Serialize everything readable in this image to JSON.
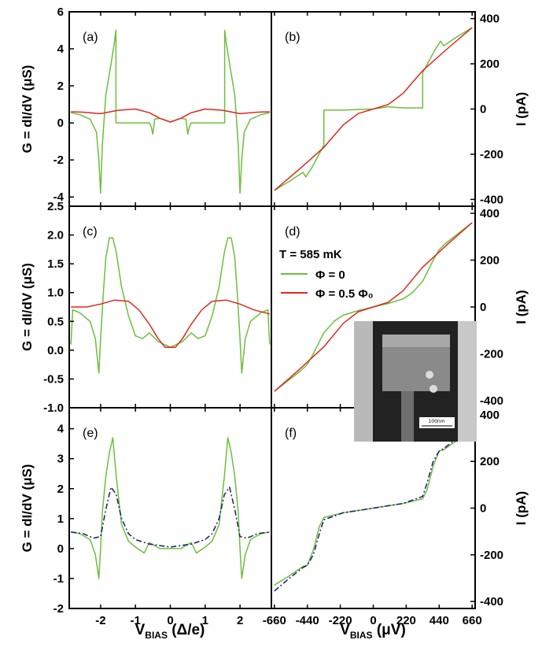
{
  "chart_data": [
    {
      "id": "a",
      "panel_label": "(a)",
      "type": "line",
      "ylabel": "G = dI/dV (μS)",
      "xlim": [
        -2.9,
        2.9
      ],
      "ylim": [
        -4.5,
        6
      ],
      "yticks": [
        "6",
        "4",
        "2",
        "0",
        "-2",
        "-4"
      ],
      "ytick_values": [
        6,
        4,
        2,
        0,
        -2,
        -4
      ],
      "series": [
        {
          "color": "#6cbf3c",
          "style": "solid",
          "x": [
            -2.85,
            -2.6,
            -2.3,
            -2.12,
            -2.05,
            -2.0,
            -1.95,
            -1.85,
            -1.7,
            -1.6,
            -1.56,
            -1.56,
            -0.6,
            -0.55,
            -0.5,
            -0.45,
            -0.3,
            0,
            0.3,
            0.45,
            0.5,
            0.55,
            0.6,
            1.56,
            1.56,
            1.6,
            1.7,
            1.85,
            1.95,
            2.0,
            2.05,
            2.12,
            2.3,
            2.6,
            2.85
          ],
          "y": [
            0.55,
            0.45,
            0.2,
            -0.5,
            -2,
            -3.8,
            -1.2,
            1.5,
            3.2,
            4.4,
            5.0,
            0,
            0,
            -0.2,
            -0.6,
            0.2,
            0.25,
            0.05,
            0.25,
            0.2,
            -0.6,
            -0.2,
            0,
            0,
            5.0,
            4.4,
            3.2,
            1.5,
            -1.2,
            -3.8,
            -2,
            -0.5,
            0.2,
            0.45,
            0.55
          ]
        },
        {
          "color": "#e0281e",
          "style": "solid",
          "x": [
            -2.85,
            -2.5,
            -2.0,
            -1.5,
            -1.0,
            -0.6,
            -0.3,
            0,
            0.3,
            0.6,
            1.0,
            1.5,
            2.0,
            2.5,
            2.85
          ],
          "y": [
            0.6,
            0.58,
            0.5,
            0.68,
            0.75,
            0.55,
            0.25,
            0.05,
            0.25,
            0.55,
            0.75,
            0.68,
            0.5,
            0.58,
            0.6
          ]
        }
      ]
    },
    {
      "id": "b",
      "panel_label": "(b)",
      "type": "line",
      "ylabel": "I (pA)",
      "xlim": [
        -680,
        680
      ],
      "ylim": [
        -430,
        430
      ],
      "yticks": [
        "400",
        "200",
        "0",
        "-200",
        "-400"
      ],
      "ytick_values": [
        400,
        200,
        0,
        -200,
        -400
      ],
      "series": [
        {
          "color": "#6cbf3c",
          "style": "solid",
          "x": [
            -660,
            -560,
            -470,
            -450,
            -410,
            -330,
            -330,
            -200,
            -100,
            0,
            100,
            200,
            330,
            330,
            410,
            450,
            470,
            560,
            660
          ],
          "y": [
            -360,
            -320,
            -280,
            -300,
            -260,
            -160,
            -5,
            -5,
            -2,
            0,
            10,
            5,
            5,
            160,
            260,
            300,
            280,
            320,
            360
          ]
        },
        {
          "color": "#e0281e",
          "style": "solid",
          "x": [
            -660,
            -500,
            -330,
            -200,
            -100,
            0,
            100,
            200,
            330,
            500,
            660
          ],
          "y": [
            -360,
            -270,
            -170,
            -70,
            -20,
            0,
            20,
            70,
            170,
            270,
            360
          ]
        }
      ]
    },
    {
      "id": "c",
      "panel_label": "(c)",
      "type": "line",
      "ylabel": "G = dI/dV (μS)",
      "xlim": [
        -2.9,
        2.9
      ],
      "ylim": [
        -1.0,
        2.5
      ],
      "yticks": [
        "2.5",
        "2.0",
        "1.5",
        "1.0",
        "0.5",
        "0.0",
        "-0.5",
        "-1.0"
      ],
      "ytick_values": [
        2.5,
        2.0,
        1.5,
        1.0,
        0.5,
        0.0,
        -0.5,
        -1.0
      ],
      "series": [
        {
          "color": "#6cbf3c",
          "style": "solid",
          "x": [
            -2.85,
            -2.8,
            -2.6,
            -2.3,
            -2.15,
            -2.05,
            -2.0,
            -1.92,
            -1.85,
            -1.75,
            -1.65,
            -1.55,
            -1.4,
            -1.2,
            -1.0,
            -0.8,
            -0.6,
            -0.35,
            0,
            0.35,
            0.6,
            0.8,
            1.0,
            1.2,
            1.4,
            1.55,
            1.65,
            1.75,
            1.85,
            1.92,
            2.0,
            2.05,
            2.15,
            2.3,
            2.6,
            2.8,
            2.85
          ],
          "y": [
            0.1,
            0.7,
            0.65,
            0.5,
            0.2,
            -0.4,
            0.2,
            1.0,
            1.6,
            1.95,
            1.95,
            1.7,
            1.1,
            0.6,
            0.25,
            0.2,
            0.3,
            0.15,
            0.05,
            0.15,
            0.3,
            0.2,
            0.25,
            0.6,
            1.1,
            1.7,
            1.95,
            1.95,
            1.6,
            1.0,
            0.2,
            -0.4,
            0.2,
            0.5,
            0.65,
            0.7,
            0.1
          ]
        },
        {
          "color": "#e0281e",
          "style": "solid",
          "x": [
            -2.85,
            -2.4,
            -2.0,
            -1.6,
            -1.2,
            -0.9,
            -0.6,
            -0.35,
            -0.15,
            0,
            0.15,
            0.35,
            0.6,
            0.9,
            1.2,
            1.6,
            2.0,
            2.4,
            2.85
          ],
          "y": [
            0.75,
            0.75,
            0.8,
            0.87,
            0.85,
            0.7,
            0.45,
            0.2,
            0.05,
            0.05,
            0.05,
            0.2,
            0.45,
            0.7,
            0.85,
            0.87,
            0.8,
            0.7,
            0.63
          ]
        }
      ]
    },
    {
      "id": "d",
      "panel_label": "(d)",
      "type": "line",
      "ylabel": "I (pA)",
      "xlim": [
        -680,
        680
      ],
      "ylim": [
        -430,
        430
      ],
      "yticks": [
        "400",
        "200",
        "0",
        "-200",
        "-400"
      ],
      "ytick_values": [
        400,
        200,
        0,
        -200,
        -400
      ],
      "legend": {
        "title": "T = 585 mK",
        "entries": [
          "Φ = 0",
          "Φ = 0.5 Φ₀"
        ]
      },
      "inset": {
        "scale_bar": "100nm"
      },
      "series": [
        {
          "color": "#6cbf3c",
          "style": "solid",
          "x": [
            -660,
            -560,
            -480,
            -440,
            -400,
            -330,
            -260,
            -200,
            -100,
            0,
            100,
            200,
            260,
            330,
            400,
            440,
            480,
            560,
            660
          ],
          "y": [
            -360,
            -310,
            -270,
            -245,
            -200,
            -110,
            -60,
            -35,
            -15,
            0,
            15,
            35,
            60,
            110,
            200,
            245,
            270,
            310,
            360
          ]
        },
        {
          "color": "#e0281e",
          "style": "solid",
          "x": [
            -660,
            -500,
            -330,
            -200,
            -100,
            0,
            100,
            200,
            330,
            500,
            660
          ],
          "y": [
            -360,
            -270,
            -170,
            -70,
            -20,
            0,
            20,
            70,
            170,
            270,
            360
          ]
        }
      ]
    },
    {
      "id": "e",
      "panel_label": "(e)",
      "type": "line",
      "ylabel": "G = dI/dV (μS)",
      "xlabel": "V_BIAS (Δ/e)",
      "xlim": [
        -2.9,
        2.9
      ],
      "ylim": [
        -2,
        4.7
      ],
      "xticks": [
        "-2",
        "-1",
        "0",
        "1",
        "2"
      ],
      "xtick_values": [
        -2,
        -1,
        0,
        1,
        2
      ],
      "yticks": [
        "4",
        "3",
        "2",
        "1",
        "0",
        "-1",
        "-2"
      ],
      "ytick_values": [
        4,
        3,
        2,
        1,
        0,
        -1,
        -2
      ],
      "series": [
        {
          "color": "#6cbf3c",
          "style": "solid",
          "x": [
            -2.85,
            -2.6,
            -2.3,
            -2.15,
            -2.05,
            -2.0,
            -1.95,
            -1.85,
            -1.75,
            -1.65,
            -1.55,
            -1.4,
            -1.2,
            -1.0,
            -0.75,
            -0.6,
            -0.3,
            0,
            0.3,
            0.6,
            0.75,
            1.0,
            1.2,
            1.4,
            1.55,
            1.65,
            1.75,
            1.85,
            1.95,
            2.0,
            2.05,
            2.15,
            2.3,
            2.6,
            2.85
          ],
          "y": [
            0.55,
            0.5,
            0.3,
            -0.2,
            -1.0,
            0.0,
            1.2,
            2.4,
            3.2,
            3.7,
            2.4,
            0.8,
            0.25,
            0.05,
            -0.15,
            0.2,
            0.0,
            0.0,
            0.0,
            0.2,
            -0.15,
            0.05,
            0.25,
            0.8,
            2.4,
            3.7,
            3.2,
            2.4,
            1.2,
            0.0,
            -1.0,
            -0.2,
            0.3,
            0.5,
            0.55
          ]
        },
        {
          "color": "#1a1a6e",
          "style": "dashdot",
          "x": [
            -2.85,
            -2.5,
            -2.2,
            -2.0,
            -1.85,
            -1.7,
            -1.55,
            -1.4,
            -1.2,
            -1.0,
            -0.6,
            -0.3,
            0,
            0.3,
            0.6,
            1.0,
            1.2,
            1.4,
            1.55,
            1.7,
            1.85,
            2.0,
            2.2,
            2.5,
            2.85
          ],
          "y": [
            0.55,
            0.5,
            0.35,
            0.4,
            1.3,
            2.05,
            1.8,
            1.0,
            0.5,
            0.3,
            0.15,
            0.1,
            0.05,
            0.1,
            0.15,
            0.3,
            0.5,
            1.0,
            1.8,
            2.05,
            1.3,
            0.4,
            0.35,
            0.5,
            0.55
          ]
        }
      ]
    },
    {
      "id": "f",
      "panel_label": "(f)",
      "type": "line",
      "ylabel": "I (pA)",
      "xlabel": "V_BIAS (μV)",
      "xlim": [
        -680,
        680
      ],
      "ylim": [
        -430,
        430
      ],
      "xticks": [
        "-660",
        "-440",
        "-220",
        "0",
        "220",
        "440",
        "660"
      ],
      "xtick_values": [
        -660,
        -440,
        -220,
        0,
        220,
        440,
        660
      ],
      "yticks": [
        "400",
        "200",
        "0",
        "-200",
        "-400"
      ],
      "ytick_values": [
        400,
        200,
        0,
        -200,
        -400
      ],
      "series": [
        {
          "color": "#6cbf3c",
          "style": "solid",
          "x": [
            -660,
            -560,
            -470,
            -440,
            -400,
            -360,
            -330,
            -200,
            -100,
            0,
            100,
            200,
            330,
            360,
            400,
            440,
            470,
            560,
            660
          ],
          "y": [
            -330,
            -290,
            -250,
            -245,
            -180,
            -80,
            -40,
            -20,
            -10,
            0,
            10,
            20,
            40,
            80,
            180,
            245,
            250,
            290,
            330
          ]
        },
        {
          "color": "#1a1a6e",
          "style": "dashdot",
          "x": [
            -660,
            -560,
            -470,
            -440,
            -400,
            -360,
            -330,
            -200,
            -100,
            0,
            100,
            200,
            330,
            360,
            400,
            440,
            470,
            560,
            660
          ],
          "y": [
            -355,
            -300,
            -255,
            -245,
            -200,
            -110,
            -50,
            -20,
            -10,
            0,
            10,
            20,
            50,
            110,
            200,
            245,
            255,
            300,
            340
          ]
        }
      ]
    }
  ]
}
